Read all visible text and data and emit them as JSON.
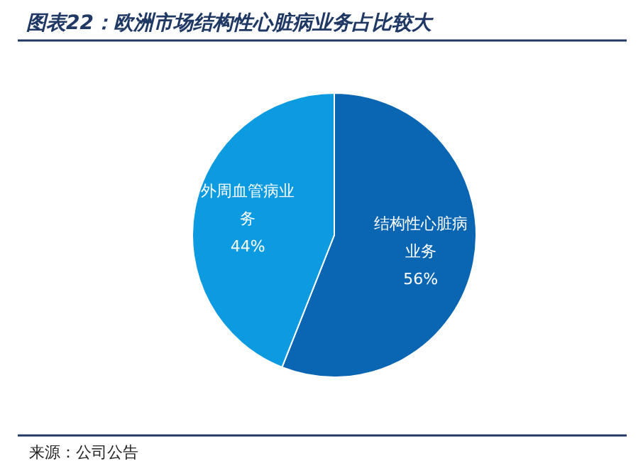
{
  "chart_data": {
    "type": "pie",
    "title": "图表22：欧洲市场结构性心脏病业务占比较大",
    "categories": [
      "结构性心脏病业务",
      "外周血管病业务"
    ],
    "values": [
      56,
      44
    ],
    "colors": [
      "#0a66b3",
      "#0c9be0"
    ],
    "value_labels": [
      "56%",
      "44%"
    ],
    "annotations": [
      "来源：公司公告"
    ]
  }
}
